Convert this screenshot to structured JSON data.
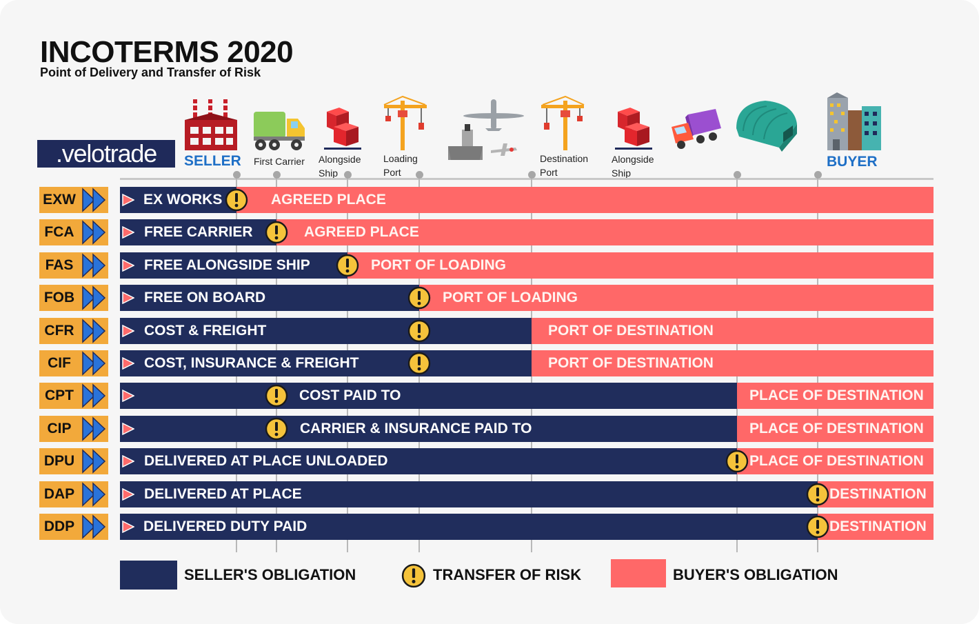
{
  "header": {
    "title": "INCOTERMS 2020",
    "subtitle": "Point of Delivery and Transfer of Risk",
    "logo_text": ".velotrade"
  },
  "stages": [
    {
      "label": "SELLER",
      "icon": "factory-icon"
    },
    {
      "label": "First Carrier",
      "icon": "truck-icon"
    },
    {
      "label": "Alongside\nShip",
      "icon": "boxes-icon"
    },
    {
      "label": "Loading\nPort",
      "icon": "crane-icon"
    },
    {
      "label": "",
      "icon": "transport-icon"
    },
    {
      "label": "Destination\nPort",
      "icon": "crane-icon"
    },
    {
      "label": "Alongside\nShip",
      "icon": "boxes-icon"
    },
    {
      "label": "",
      "icon": "lorry-icon"
    },
    {
      "label": "",
      "icon": "warehouse-icon"
    },
    {
      "label": "BUYER",
      "icon": "buildings-icon"
    }
  ],
  "terms": [
    {
      "code": "EXW",
      "seller_text": "EX WORKS",
      "buyer_text": "AGREED PLACE",
      "delivery_point": "Seller",
      "risk_transfer_point": "Seller"
    },
    {
      "code": "FCA",
      "seller_text": "FREE CARRIER",
      "buyer_text": "AGREED PLACE",
      "delivery_point": "First Carrier",
      "risk_transfer_point": "First Carrier"
    },
    {
      "code": "FAS",
      "seller_text": "FREE ALONGSIDE SHIP",
      "buyer_text": "PORT OF LOADING",
      "delivery_point": "Alongside Ship",
      "risk_transfer_point": "Alongside Ship"
    },
    {
      "code": "FOB",
      "seller_text": "FREE ON BOARD",
      "buyer_text": "PORT OF LOADING",
      "delivery_point": "Loading Port",
      "risk_transfer_point": "Loading Port"
    },
    {
      "code": "CFR",
      "seller_text": "COST & FREIGHT",
      "buyer_text": "PORT OF DESTINATION",
      "delivery_point": "Destination Port",
      "risk_transfer_point": "Loading Port"
    },
    {
      "code": "CIF",
      "seller_text": "COST, INSURANCE & FREIGHT",
      "buyer_text": "PORT OF DESTINATION",
      "delivery_point": "Destination Port",
      "risk_transfer_point": "Loading Port"
    },
    {
      "code": "CPT",
      "seller_text": "COST PAID TO",
      "buyer_text": "PLACE OF DESTINATION",
      "delivery_point": "Place of Destination",
      "risk_transfer_point": "First Carrier"
    },
    {
      "code": "CIP",
      "seller_text": "CARRIER & INSURANCE PAID TO",
      "buyer_text": "PLACE OF DESTINATION",
      "delivery_point": "Place of Destination",
      "risk_transfer_point": "First Carrier"
    },
    {
      "code": "DPU",
      "seller_text": "DELIVERED AT PLACE UNLOADED",
      "buyer_text": "PLACE OF DESTINATION",
      "delivery_point": "Place of Destination",
      "risk_transfer_point": "Place of Destination"
    },
    {
      "code": "DAP",
      "seller_text": "DELIVERED AT PLACE",
      "buyer_text": "DESTINATION",
      "delivery_point": "Buyer",
      "risk_transfer_point": "Buyer"
    },
    {
      "code": "DDP",
      "seller_text": "DELIVERED DUTY PAID",
      "buyer_text": "DESTINATION",
      "delivery_point": "Buyer",
      "risk_transfer_point": "Buyer"
    }
  ],
  "legend": {
    "seller": "SELLER'S OBLIGATION",
    "risk": "TRANSFER OF RISK",
    "buyer": "BUYER'S OBLIGATION"
  },
  "colors": {
    "seller": "#202d5c",
    "buyer": "#ff6868",
    "code_tag": "#f2a93b",
    "warning": "#f5c33b",
    "brand": "#1e6fc6"
  }
}
